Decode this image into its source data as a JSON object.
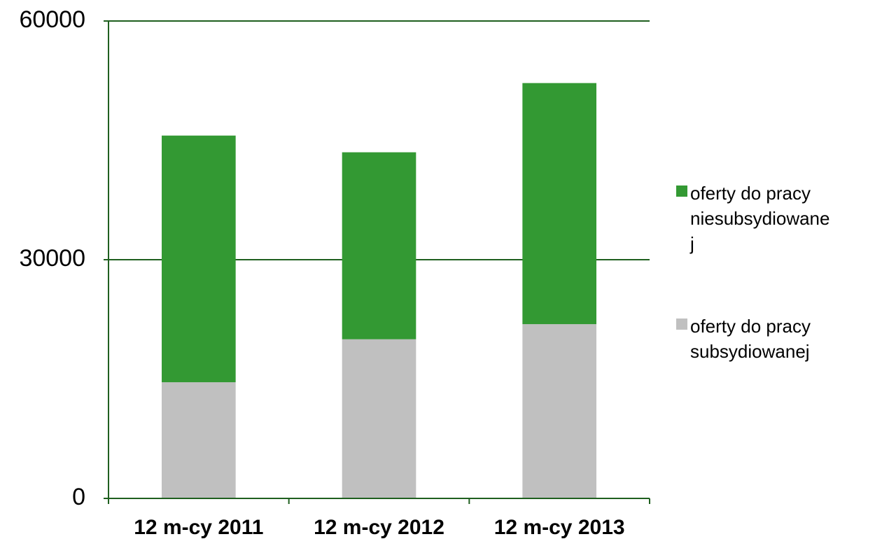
{
  "chart_data": {
    "type": "stacked-bar",
    "categories": [
      "12 m-cy 2011",
      "12 m-cy 2012",
      "12 m-cy 2013"
    ],
    "series": [
      {
        "name": "oferty do pracy subsydiowanej",
        "color": "#c0c0c0",
        "values": [
          14600,
          20000,
          21900
        ]
      },
      {
        "name": "oferty do pracy niesubsydiowanej",
        "color": "#339933",
        "values": [
          31000,
          23500,
          30300
        ]
      }
    ],
    "ylim": [
      0,
      60000
    ],
    "yticks": [
      0,
      30000,
      60000
    ],
    "grid": true,
    "legend": "right"
  }
}
